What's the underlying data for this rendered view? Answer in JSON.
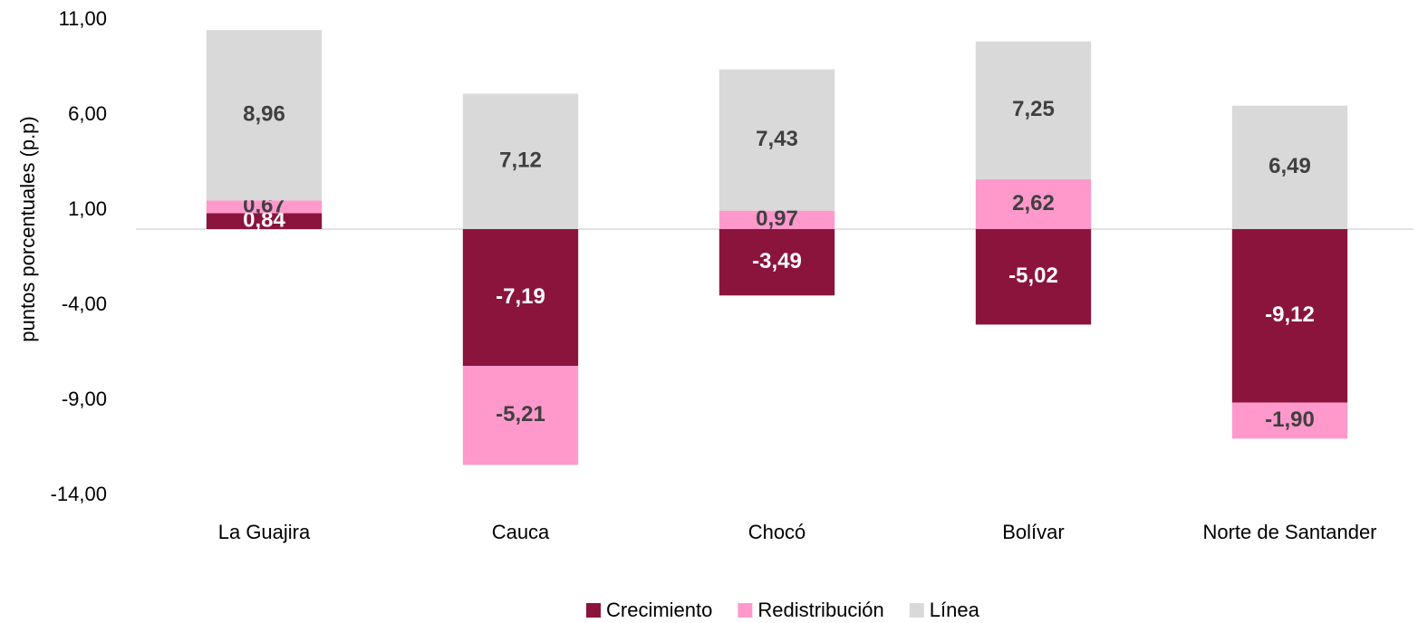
{
  "chart_data": {
    "type": "stacked_bar",
    "y_label": "puntos porcentuales (p.p)",
    "categories": [
      "La Guajira",
      "Cauca",
      "Chocó",
      "Bolívar",
      "Norte de Santander"
    ],
    "series": [
      {
        "name": "Crecimiento",
        "color": "#8b143c",
        "values": [
          0.84,
          -7.19,
          -3.49,
          -5.02,
          -9.12
        ],
        "value_labels": [
          "0,84",
          "-7,19",
          "-3,49",
          "-5,02",
          "-9,12"
        ]
      },
      {
        "name": "Redistribución",
        "color": "#ff99cc",
        "values": [
          0.67,
          -5.21,
          0.97,
          2.62,
          -1.9
        ],
        "value_labels": [
          "0,67",
          "-5,21",
          "0,97",
          "2,62",
          "-1,90"
        ]
      },
      {
        "name": "Línea",
        "color": "#d9d9d9",
        "values": [
          8.96,
          7.12,
          7.43,
          7.25,
          6.49
        ],
        "value_labels": [
          "8,96",
          "7,12",
          "7,43",
          "7,25",
          "6,49"
        ]
      }
    ],
    "ylim": [
      -14,
      11
    ],
    "yticks": [
      {
        "value": 11,
        "label": "11,00"
      },
      {
        "value": 6,
        "label": "6,00"
      },
      {
        "value": 1,
        "label": "1,00"
      },
      {
        "value": -4,
        "label": "-4,00"
      },
      {
        "value": -9,
        "label": "-9,00"
      },
      {
        "value": -14,
        "label": "-14,00"
      }
    ],
    "legend": "bottom"
  }
}
